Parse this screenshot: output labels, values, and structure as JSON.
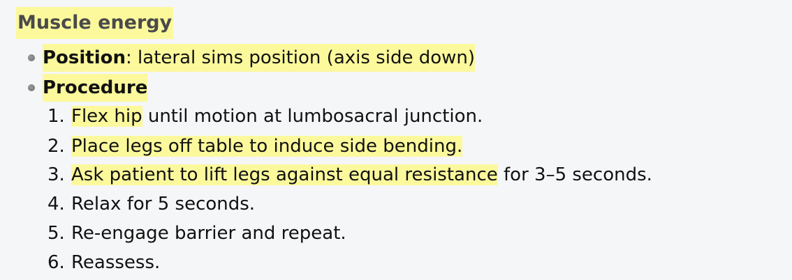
{
  "section": {
    "title": "Muscle energy"
  },
  "bullets": [
    {
      "label": "Position",
      "sep": ":",
      "text": " lateral sims position (axis side down)"
    },
    {
      "label": "Procedure"
    }
  ],
  "steps": [
    {
      "num": "1.",
      "hl": "Flex hip",
      "rest": " until motion at lumbosacral junction."
    },
    {
      "num": "2.",
      "hl": "Place legs off table to induce side bending.",
      "rest": ""
    },
    {
      "num": "3.",
      "hl": "Ask patient to lift legs against equal resistance",
      "rest": " for 3–5 seconds."
    },
    {
      "num": "4.",
      "hl": "",
      "rest": "Relax for 5 seconds."
    },
    {
      "num": "5.",
      "hl": "",
      "rest": "Re-engage barrier and repeat."
    },
    {
      "num": "6.",
      "hl": "",
      "rest": "Reassess."
    }
  ],
  "colors": {
    "highlight": "#fbf99c",
    "background": "#f5f6f8",
    "heading": "#4a4a4a"
  }
}
